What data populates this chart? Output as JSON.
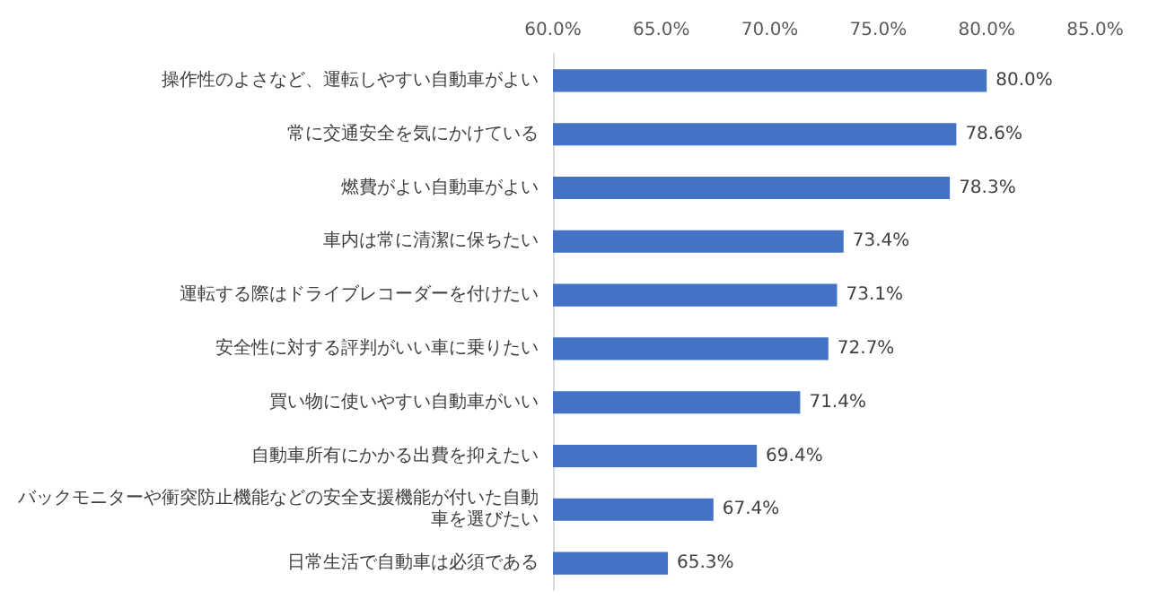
{
  "chart_data": {
    "type": "bar",
    "orientation": "horizontal",
    "categories": [
      "操作性のよさなど、運転しやすい自動車がよい",
      "常に交通安全を気にかけている",
      "燃費がよい自動車がよい",
      "車内は常に清潔に保ちたい",
      "運転する際はドライブレコーダーを付けたい",
      "安全性に対する評判がいい車に乗りたい",
      "買い物に使いやすい自動車がいい",
      "自動車所有にかかる出費を抑えたい",
      "バックモニターや衝突防止機能などの安全支援機能が付いた自動車を選びたい",
      "日常生活で自動車は必須である"
    ],
    "values": [
      80.0,
      78.6,
      78.3,
      73.4,
      73.1,
      72.7,
      71.4,
      69.4,
      67.4,
      65.3
    ],
    "value_labels": [
      "80.0%",
      "78.6%",
      "78.3%",
      "73.4%",
      "73.1%",
      "72.7%",
      "71.4%",
      "69.4%",
      "67.4%",
      "65.3%"
    ],
    "color": "#4472c4",
    "xlim": [
      60,
      85
    ],
    "xticks": [
      {
        "value": 60,
        "label": "60.0%"
      },
      {
        "value": 65,
        "label": "65.0%"
      },
      {
        "value": 70,
        "label": "70.0%"
      },
      {
        "value": 75,
        "label": "75.0%"
      },
      {
        "value": 80,
        "label": "80.0%"
      },
      {
        "value": 85,
        "label": "85.0%"
      }
    ],
    "grid": false
  }
}
